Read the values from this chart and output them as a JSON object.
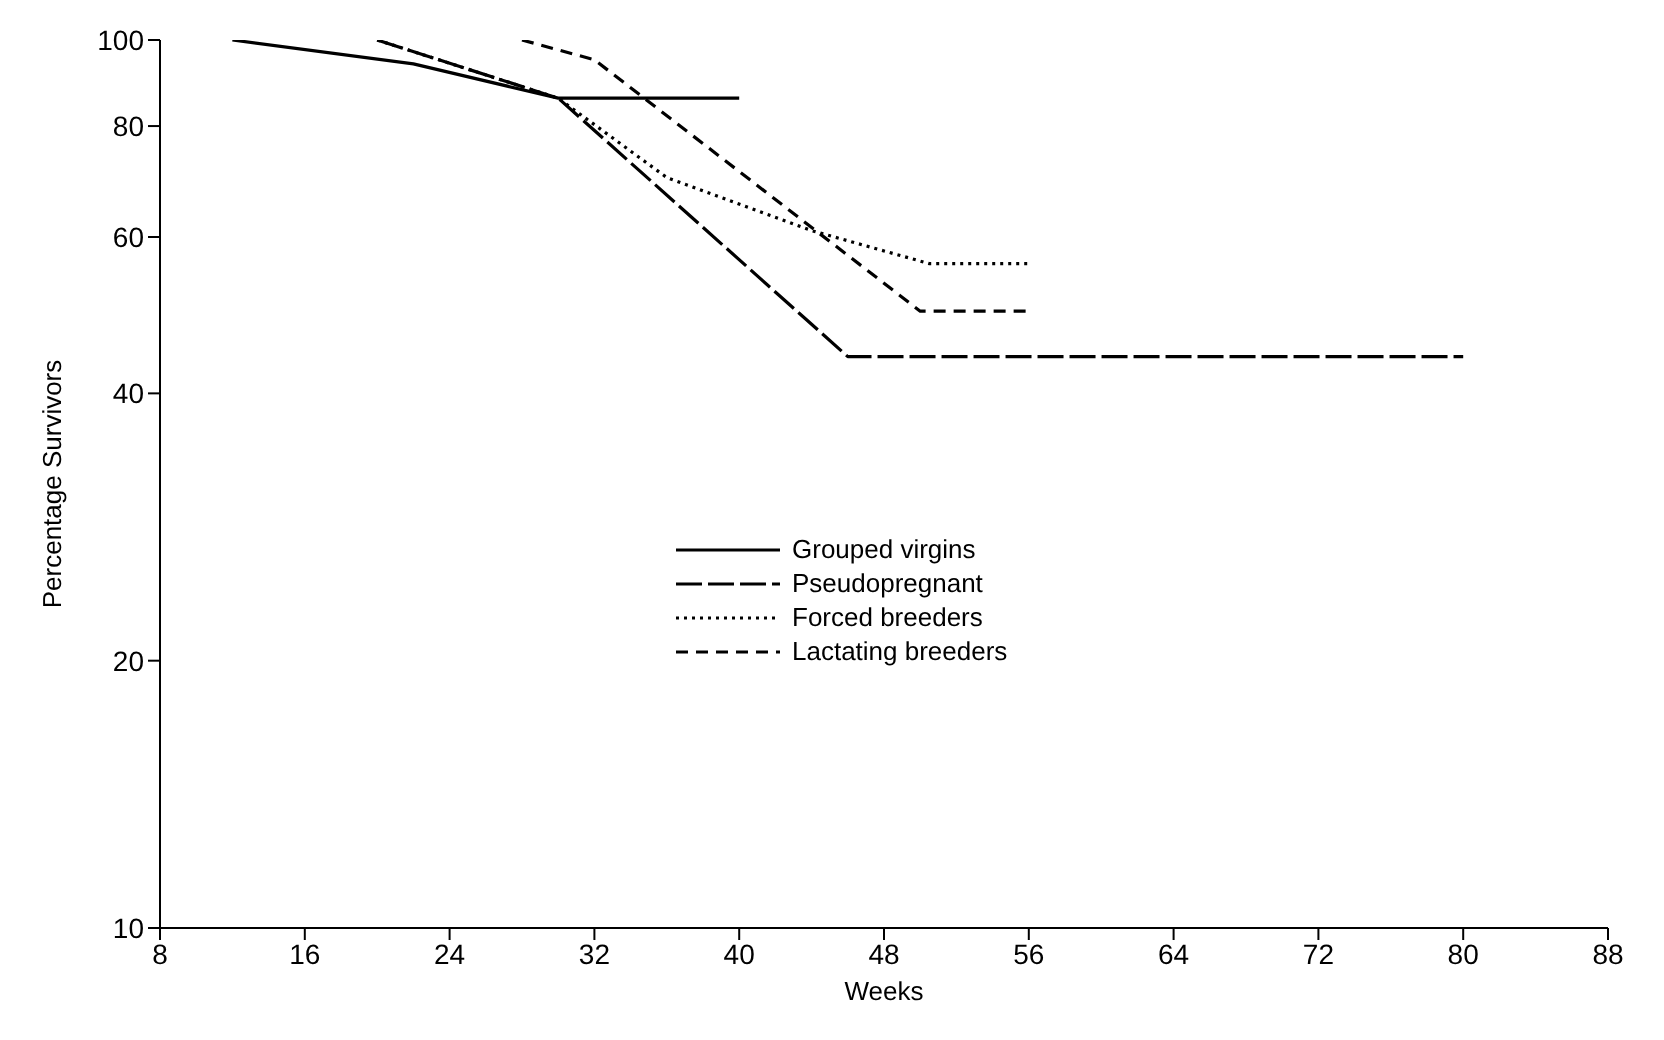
{
  "chart_data": {
    "type": "line",
    "xlabel": "Weeks",
    "ylabel": "Percentage Survivors",
    "log": "y",
    "xlim": [
      8,
      88
    ],
    "xticks": [
      8,
      16,
      24,
      32,
      40,
      48,
      56,
      64,
      72,
      80,
      88
    ],
    "ylim": [
      10,
      100
    ],
    "yticks": [
      10,
      20,
      40,
      60,
      80,
      100
    ],
    "grid": false,
    "legend": "center",
    "marker": "none",
    "series": [
      {
        "name": "Grouped virgins",
        "color": "#000000",
        "line_style": "solid",
        "x": [
          12,
          22,
          30,
          40
        ],
        "values": [
          100,
          94,
          86,
          86
        ]
      },
      {
        "name": "Pseudopregnant",
        "color": "#000000",
        "line_style": "long dashed",
        "x": [
          20,
          30,
          46,
          80
        ],
        "values": [
          100,
          86,
          44,
          44
        ]
      },
      {
        "name": "Forced breeders",
        "color": "#000000",
        "line_style": "dotted",
        "x": [
          20,
          30,
          36,
          44,
          50.5,
          56
        ],
        "values": [
          100,
          86,
          70,
          61,
          56,
          56
        ]
      },
      {
        "name": "Lactating breeders",
        "color": "#000000",
        "line_style": "dashed",
        "x": [
          28,
          32,
          50,
          56
        ],
        "values": [
          100,
          95,
          49.5,
          49.5
        ]
      }
    ]
  }
}
